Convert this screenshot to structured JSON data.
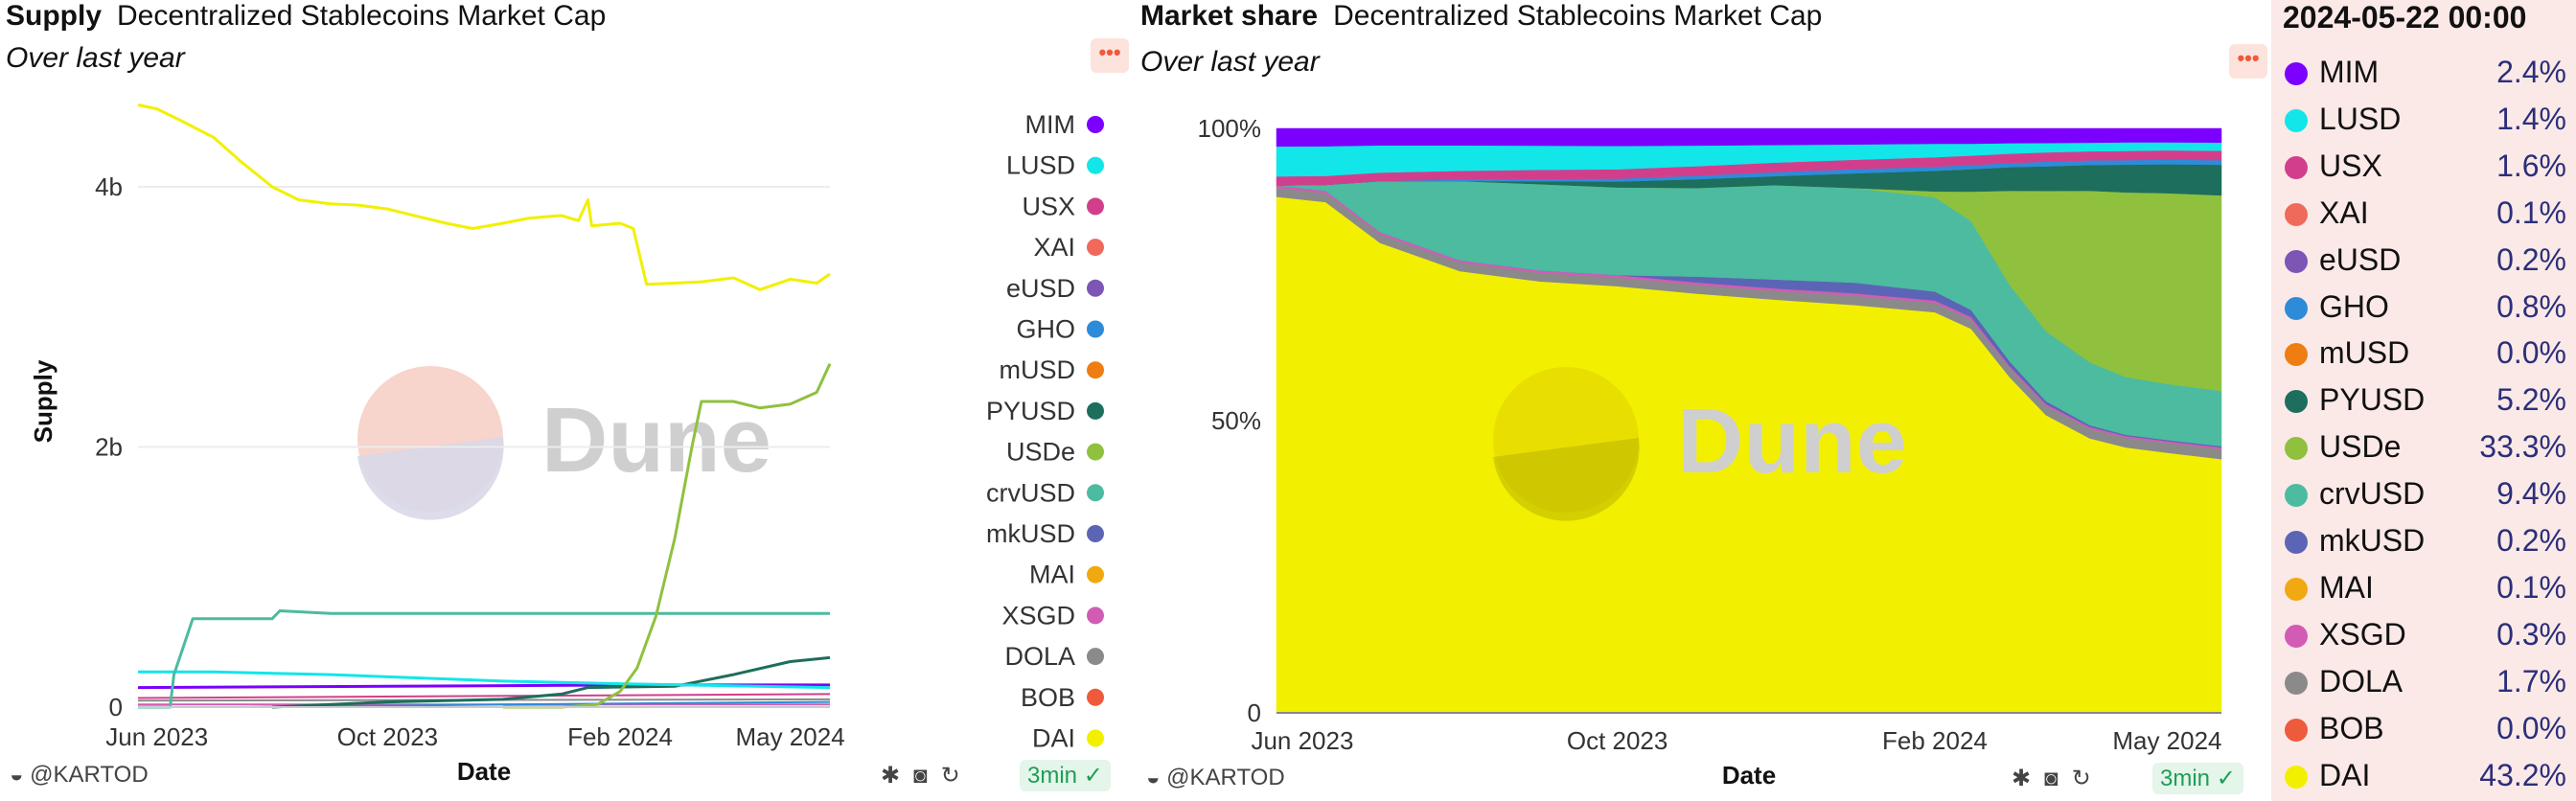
{
  "supply_panel": {
    "title": "Supply",
    "subtitle_title": "Decentralized Stablecoins Market Cap",
    "subtitle": "Over last year",
    "watermark": "Dune",
    "footer_user": "@KARTOD",
    "age": "3min"
  },
  "share_panel": {
    "title": "Market share",
    "subtitle_title": "Decentralized Stablecoins Market Cap",
    "subtitle": "Over last year",
    "watermark": "Dune",
    "footer_user": "@KARTOD",
    "age": "3min"
  },
  "snapshot": {
    "date": "2024-05-22 00:00",
    "rows": [
      {
        "name": "MIM",
        "value": "2.4%",
        "color": "#7b00ff"
      },
      {
        "name": "LUSD",
        "value": "1.4%",
        "color": "#12e6e9"
      },
      {
        "name": "USX",
        "value": "1.6%",
        "color": "#d13f8c"
      },
      {
        "name": "XAI",
        "value": "0.1%",
        "color": "#ef6a5a"
      },
      {
        "name": "eUSD",
        "value": "0.2%",
        "color": "#7c55b5"
      },
      {
        "name": "GHO",
        "value": "0.8%",
        "color": "#2e8bd8"
      },
      {
        "name": "mUSD",
        "value": "0.0%",
        "color": "#ee7d12"
      },
      {
        "name": "PYUSD",
        "value": "5.2%",
        "color": "#1d6e5c"
      },
      {
        "name": "USDe",
        "value": "33.3%",
        "color": "#8fc13f"
      },
      {
        "name": "crvUSD",
        "value": "9.4%",
        "color": "#4cbba0"
      },
      {
        "name": "mkUSD",
        "value": "0.2%",
        "color": "#5c65b5"
      },
      {
        "name": "MAI",
        "value": "0.1%",
        "color": "#f0a911"
      },
      {
        "name": "XSGD",
        "value": "0.3%",
        "color": "#d25cb5"
      },
      {
        "name": "DOLA",
        "value": "1.7%",
        "color": "#8a8a8a"
      },
      {
        "name": "BOB",
        "value": "0.0%",
        "color": "#ee5a3c"
      },
      {
        "name": "DAI",
        "value": "43.2%",
        "color": "#f2f000"
      }
    ]
  },
  "chart_data": [
    {
      "type": "line",
      "title": "Supply",
      "subtitle": "Decentralized Stablecoins Market Cap",
      "xlabel": "Date",
      "ylabel": "Supply",
      "x_ticks": [
        "Jun 2023",
        "Oct 2023",
        "Feb 2024",
        "May 2024"
      ],
      "y_ticks": [
        "0",
        "2b",
        "4b"
      ],
      "ylim": [
        0,
        4700000000
      ],
      "grid": true,
      "legend_position": "right",
      "x_range": [
        "2023-05-22",
        "2024-05-22"
      ],
      "x_tick_dates": [
        "2023-06-01",
        "2023-10-01",
        "2024-02-01",
        "2024-05-01"
      ],
      "legend_order": [
        "MIM",
        "LUSD",
        "USX",
        "XAI",
        "eUSD",
        "GHO",
        "mUSD",
        "PYUSD",
        "USDe",
        "crvUSD",
        "mkUSD",
        "MAI",
        "XSGD",
        "DOLA",
        "BOB",
        "DAI"
      ],
      "series": [
        {
          "name": "DAI",
          "color": "#f2f000",
          "width": 3,
          "points": [
            [
              "2023-05-22",
              4630000000
            ],
            [
              "2023-06-01",
              4600000000
            ],
            [
              "2023-06-15",
              4500000000
            ],
            [
              "2023-07-01",
              4380000000
            ],
            [
              "2023-07-15",
              4200000000
            ],
            [
              "2023-08-01",
              4000000000
            ],
            [
              "2023-08-15",
              3900000000
            ],
            [
              "2023-09-01",
              3870000000
            ],
            [
              "2023-09-15",
              3860000000
            ],
            [
              "2023-10-01",
              3830000000
            ],
            [
              "2023-10-15",
              3780000000
            ],
            [
              "2023-11-01",
              3720000000
            ],
            [
              "2023-11-15",
              3680000000
            ],
            [
              "2023-12-01",
              3720000000
            ],
            [
              "2023-12-15",
              3760000000
            ],
            [
              "2024-01-01",
              3780000000
            ],
            [
              "2024-01-10",
              3740000000
            ],
            [
              "2024-01-15",
              3900000000
            ],
            [
              "2024-01-17",
              3700000000
            ],
            [
              "2024-02-01",
              3720000000
            ],
            [
              "2024-02-08",
              3680000000
            ],
            [
              "2024-02-15",
              3250000000
            ],
            [
              "2024-03-01",
              3260000000
            ],
            [
              "2024-03-15",
              3270000000
            ],
            [
              "2024-04-01",
              3300000000
            ],
            [
              "2024-04-15",
              3210000000
            ],
            [
              "2024-05-01",
              3290000000
            ],
            [
              "2024-05-15",
              3260000000
            ],
            [
              "2024-05-22",
              3330000000
            ]
          ]
        },
        {
          "name": "USDe",
          "color": "#8fc13f",
          "width": 3,
          "points": [
            [
              "2023-12-01",
              0
            ],
            [
              "2024-01-01",
              0
            ],
            [
              "2024-01-20",
              20000000
            ],
            [
              "2024-02-01",
              120000000
            ],
            [
              "2024-02-10",
              300000000
            ],
            [
              "2024-02-20",
              700000000
            ],
            [
              "2024-03-01",
              1300000000
            ],
            [
              "2024-03-10",
              2000000000
            ],
            [
              "2024-03-15",
              2350000000
            ],
            [
              "2024-04-01",
              2350000000
            ],
            [
              "2024-04-15",
              2300000000
            ],
            [
              "2024-05-01",
              2330000000
            ],
            [
              "2024-05-15",
              2420000000
            ],
            [
              "2024-05-22",
              2640000000
            ]
          ]
        },
        {
          "name": "crvUSD",
          "color": "#4cbba0",
          "width": 3,
          "points": [
            [
              "2023-05-22",
              0
            ],
            [
              "2023-06-08",
              0
            ],
            [
              "2023-06-10",
              250000000
            ],
            [
              "2023-06-20",
              680000000
            ],
            [
              "2023-08-01",
              680000000
            ],
            [
              "2023-08-05",
              740000000
            ],
            [
              "2023-09-01",
              720000000
            ],
            [
              "2024-01-01",
              720000000
            ],
            [
              "2024-05-22",
              720000000
            ]
          ]
        },
        {
          "name": "LUSD",
          "color": "#12e6e9",
          "width": 3,
          "points": [
            [
              "2023-05-22",
              270000000
            ],
            [
              "2023-07-01",
              270000000
            ],
            [
              "2023-09-01",
              250000000
            ],
            [
              "2023-12-01",
              200000000
            ],
            [
              "2024-02-01",
              180000000
            ],
            [
              "2024-05-22",
              150000000
            ]
          ]
        },
        {
          "name": "PYUSD",
          "color": "#1d6e5c",
          "width": 3,
          "points": [
            [
              "2023-08-01",
              0
            ],
            [
              "2023-10-01",
              40000000
            ],
            [
              "2023-12-01",
              60000000
            ],
            [
              "2024-01-01",
              100000000
            ],
            [
              "2024-01-15",
              150000000
            ],
            [
              "2024-03-01",
              160000000
            ],
            [
              "2024-04-01",
              250000000
            ],
            [
              "2024-05-01",
              350000000
            ],
            [
              "2024-05-22",
              380000000
            ]
          ]
        },
        {
          "name": "MIM",
          "color": "#7b00ff",
          "width": 3,
          "points": [
            [
              "2023-05-22",
              150000000
            ],
            [
              "2023-10-01",
              160000000
            ],
            [
              "2024-02-01",
              170000000
            ],
            [
              "2024-05-22",
              170000000
            ]
          ]
        },
        {
          "name": "USX",
          "color": "#d13f8c",
          "width": 2,
          "points": [
            [
              "2023-05-22",
              70000000
            ],
            [
              "2024-05-22",
              100000000
            ]
          ]
        },
        {
          "name": "DOLA",
          "color": "#8a8a8a",
          "width": 2,
          "points": [
            [
              "2023-05-22",
              50000000
            ],
            [
              "2024-05-22",
              60000000
            ]
          ]
        },
        {
          "name": "GHO",
          "color": "#2e8bd8",
          "width": 2,
          "points": [
            [
              "2023-07-15",
              0
            ],
            [
              "2023-12-01",
              20000000
            ],
            [
              "2024-05-22",
              40000000
            ]
          ]
        },
        {
          "name": "XSGD",
          "color": "#d25cb5",
          "width": 2,
          "points": [
            [
              "2023-05-22",
              20000000
            ],
            [
              "2024-05-22",
              20000000
            ]
          ]
        }
      ]
    },
    {
      "type": "area",
      "stacked": "percent",
      "title": "Market share",
      "subtitle": "Decentralized Stablecoins Market Cap",
      "xlabel": "Date",
      "ylabel": "",
      "x_ticks": [
        "Jun 2023",
        "Oct 2023",
        "Feb 2024",
        "May 2024"
      ],
      "y_ticks": [
        "0",
        "50%",
        "100%"
      ],
      "ylim": [
        0,
        100
      ],
      "grid": false,
      "x": [
        "2023-05-22",
        "2023-06-10",
        "2023-07-01",
        "2023-08-01",
        "2023-09-01",
        "2023-10-01",
        "2023-11-01",
        "2023-12-01",
        "2024-01-01",
        "2024-02-01",
        "2024-02-15",
        "2024-03-01",
        "2024-03-15",
        "2024-04-01",
        "2024-04-15",
        "2024-05-01",
        "2024-05-22"
      ],
      "series_bottom_to_top": [
        {
          "name": "DAI",
          "color": "#f2f000",
          "values": [
            86,
            86,
            83,
            78,
            75,
            73,
            71,
            70,
            69,
            68,
            65,
            57,
            51,
            48,
            46,
            45,
            43.2
          ]
        },
        {
          "name": "DOLA",
          "color": "#8a8a8a",
          "values": [
            1.5,
            1.5,
            1.5,
            1.5,
            1.5,
            1.5,
            1.5,
            1.5,
            1.6,
            1.6,
            1.6,
            1.6,
            1.6,
            1.7,
            1.7,
            1.7,
            1.7
          ]
        },
        {
          "name": "XSGD",
          "color": "#d25cb5",
          "values": [
            0.4,
            0.4,
            0.4,
            0.4,
            0.4,
            0.4,
            0.4,
            0.4,
            0.4,
            0.4,
            0.4,
            0.3,
            0.3,
            0.3,
            0.3,
            0.3,
            0.3
          ]
        },
        {
          "name": "mkUSD",
          "color": "#5c65b5",
          "values": [
            0,
            0,
            0,
            0,
            0,
            0,
            1,
            1.5,
            1.8,
            1.5,
            1.2,
            0.8,
            0.5,
            0.3,
            0.2,
            0.2,
            0.2
          ]
        },
        {
          "name": "crvUSD",
          "color": "#4cbba0",
          "values": [
            0,
            1,
            9,
            14,
            15,
            15,
            15,
            16,
            16,
            16,
            15,
            13,
            12,
            11,
            10,
            9.7,
            9.4
          ]
        },
        {
          "name": "USDe",
          "color": "#8fc13f",
          "values": [
            0,
            0,
            0,
            0,
            0,
            0,
            0,
            0,
            0,
            1,
            5,
            16,
            24,
            30,
            32,
            33,
            33.3
          ]
        },
        {
          "name": "PYUSD",
          "color": "#1d6e5c",
          "values": [
            0,
            0,
            0,
            0,
            0.5,
            1,
            1.5,
            1.5,
            2.5,
            3.5,
            3.8,
            4,
            4.2,
            4.5,
            4.8,
            5,
            5.2
          ]
        },
        {
          "name": "GHO",
          "color": "#2e8bd8",
          "values": [
            0,
            0,
            0,
            0.3,
            0.4,
            0.5,
            0.6,
            0.7,
            0.7,
            0.7,
            0.7,
            0.7,
            0.8,
            0.8,
            0.8,
            0.8,
            0.8
          ]
        },
        {
          "name": "USX",
          "color": "#d13f8c",
          "values": [
            1.5,
            1.5,
            1.5,
            1.5,
            1.6,
            1.6,
            1.6,
            1.6,
            1.6,
            1.6,
            1.6,
            1.6,
            1.6,
            1.6,
            1.6,
            1.6,
            1.6
          ]
        },
        {
          "name": "LUSD",
          "color": "#12e6e9",
          "values": [
            5,
            5,
            4.8,
            4.5,
            4.2,
            4,
            3.5,
            3,
            2.6,
            2.3,
            2,
            1.8,
            1.6,
            1.5,
            1.5,
            1.4,
            1.4
          ]
        },
        {
          "name": "MIM",
          "color": "#7b00ff",
          "values": [
            3,
            3,
            3,
            3,
            3,
            3,
            2.9,
            2.8,
            2.7,
            2.6,
            2.6,
            2.5,
            2.5,
            2.5,
            2.4,
            2.4,
            2.4
          ]
        }
      ]
    }
  ]
}
